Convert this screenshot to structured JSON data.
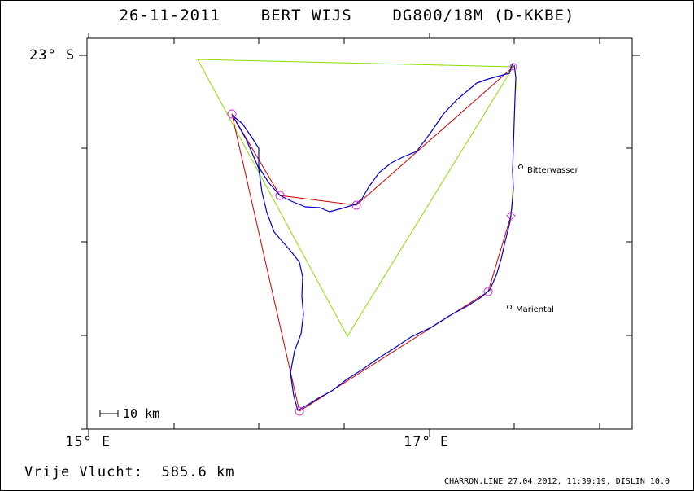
{
  "title": {
    "date": "26-11-2011",
    "pilot": "BERT WIJS",
    "glider": "DG800/18M (D-KKBE)"
  },
  "axes": {
    "lat_label": "23° S",
    "lon_left_label": "15° E",
    "lon_right_label": "17° E"
  },
  "scale_bar": {
    "label": "10 km"
  },
  "towns": [
    {
      "name": "Bitterwasser"
    },
    {
      "name": "Mariental"
    }
  ],
  "footer": {
    "label": "Vrije Vlucht:",
    "distance": "585.6 km",
    "credit": "CHARRON.LINE 27.04.2012, 11:39:19, DISLIN 10.0"
  },
  "colors": {
    "track": "#0000cc",
    "task": "#cc0000",
    "triangle": "#88dd00",
    "segment": "#ffff00",
    "turnpoint": "#cc33cc"
  }
}
